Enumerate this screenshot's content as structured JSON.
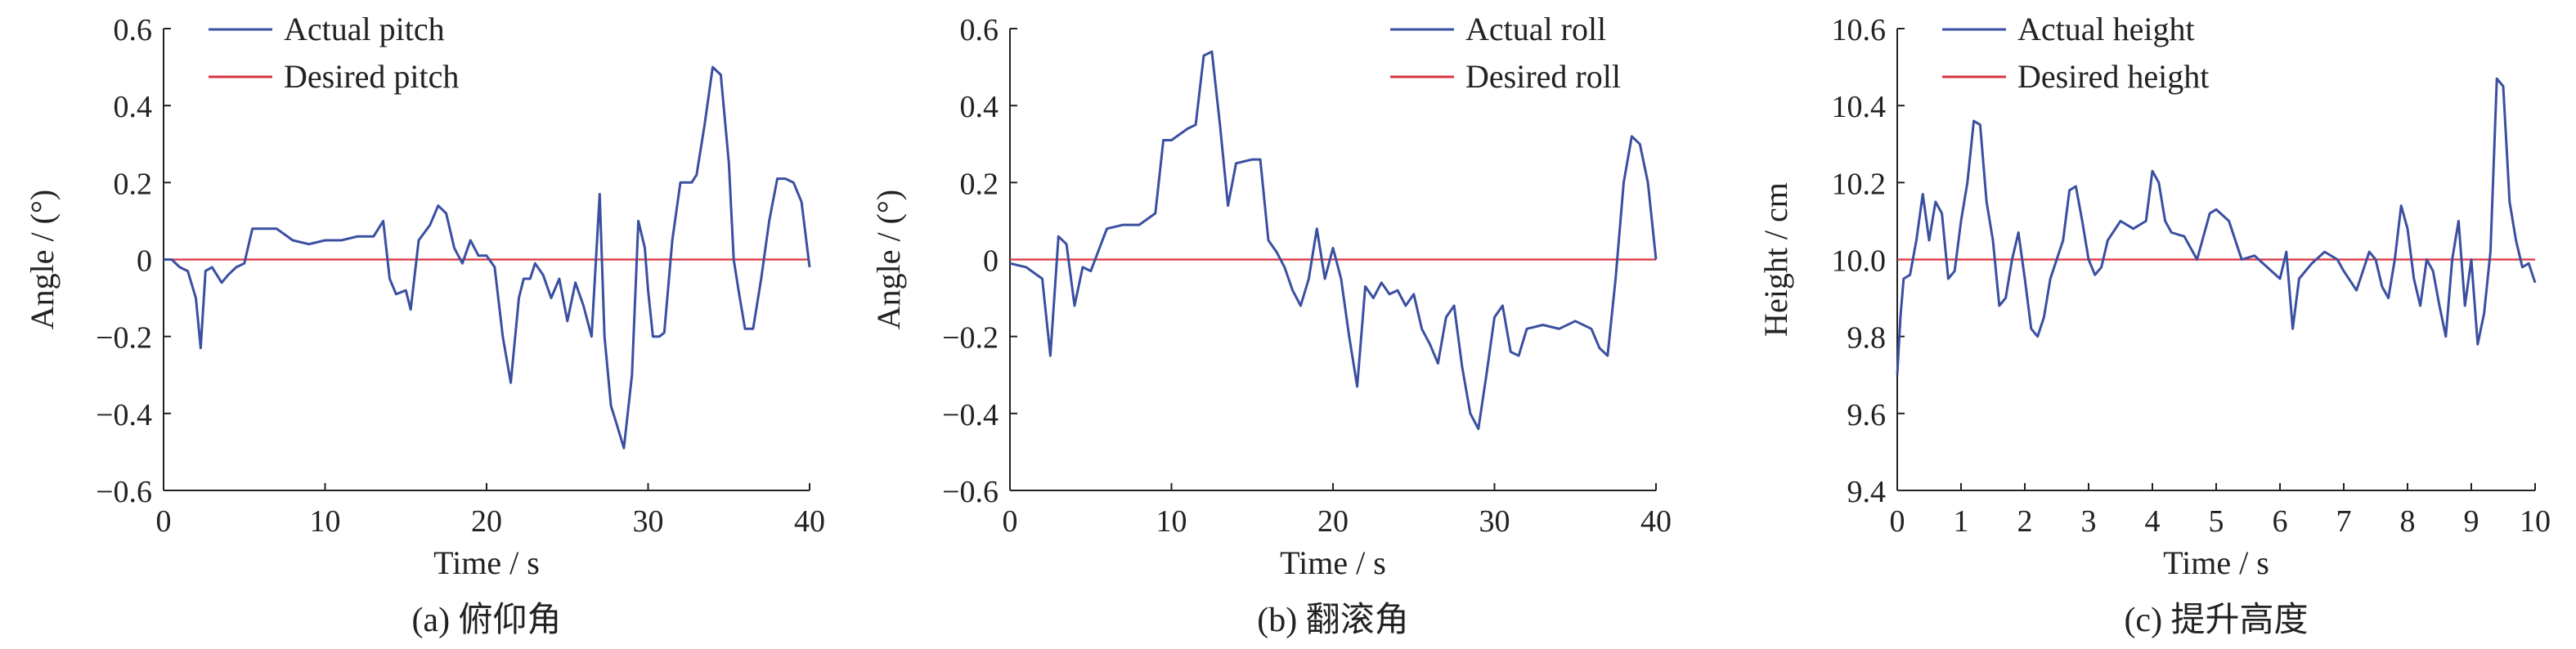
{
  "chart_data": [
    {
      "type": "line",
      "caption": "(a) 俯仰角",
      "xlabel": "Time / s",
      "ylabel": "Angle / (°)",
      "xlim": [
        0,
        40
      ],
      "ylim": [
        -0.6,
        0.6
      ],
      "xticks": [
        0,
        10,
        20,
        30,
        40
      ],
      "yticks": [
        -0.6,
        -0.4,
        -0.2,
        0,
        0.2,
        0.4,
        0.6
      ],
      "ytick_labels": [
        "−0.6",
        "−0.4",
        "−0.2",
        "0",
        "0.2",
        "0.4",
        "0.6"
      ],
      "legend_position": "top-left",
      "series": [
        {
          "name": "Actual pitch",
          "color": "#3a4fa0",
          "x": [
            0,
            0.5,
            1.0,
            1.5,
            2.0,
            2.3,
            2.6,
            3.0,
            3.6,
            4.0,
            4.5,
            5.0,
            5.5,
            6.0,
            7.0,
            8.0,
            9.0,
            10.0,
            11.0,
            12.0,
            13.0,
            13.6,
            14.0,
            14.4,
            15.0,
            15.3,
            15.8,
            16.5,
            17.0,
            17.5,
            18.0,
            18.5,
            19.0,
            19.5,
            20.0,
            20.5,
            21.0,
            21.5,
            22.0,
            22.3,
            22.7,
            23.0,
            23.5,
            24.0,
            24.5,
            25.0,
            25.5,
            26.0,
            26.5,
            27.0,
            27.3,
            27.7,
            28.0,
            28.5,
            29.0,
            29.4,
            29.8,
            30.0,
            30.3,
            30.7,
            31.0,
            31.5,
            32.0,
            32.3,
            32.7,
            33.0,
            33.5,
            34.0,
            34.5,
            35.0,
            35.3,
            35.6,
            36.0,
            36.5,
            37.0,
            37.5,
            38.0,
            38.5,
            39.0,
            39.5,
            40.0
          ],
          "y": [
            0.0,
            0.0,
            -0.02,
            -0.03,
            -0.1,
            -0.23,
            -0.03,
            -0.02,
            -0.06,
            -0.04,
            -0.02,
            -0.01,
            0.08,
            0.08,
            0.08,
            0.05,
            0.04,
            0.05,
            0.05,
            0.06,
            0.06,
            0.1,
            -0.05,
            -0.09,
            -0.08,
            -0.13,
            0.05,
            0.09,
            0.14,
            0.12,
            0.03,
            -0.01,
            0.05,
            0.01,
            0.01,
            -0.02,
            -0.2,
            -0.32,
            -0.1,
            -0.05,
            -0.05,
            -0.01,
            -0.04,
            -0.1,
            -0.05,
            -0.16,
            -0.06,
            -0.12,
            -0.2,
            0.17,
            -0.2,
            -0.38,
            -0.42,
            -0.49,
            -0.3,
            0.1,
            0.03,
            -0.08,
            -0.2,
            -0.2,
            -0.19,
            0.05,
            0.2,
            0.2,
            0.2,
            0.22,
            0.35,
            0.5,
            0.48,
            0.25,
            0.0,
            -0.08,
            -0.18,
            -0.18,
            -0.05,
            0.1,
            0.21,
            0.21,
            0.2,
            0.15,
            -0.02
          ]
        },
        {
          "name": "Desired pitch",
          "color": "#d9343f",
          "x": [
            0,
            40
          ],
          "y": [
            0,
            0
          ]
        }
      ]
    },
    {
      "type": "line",
      "caption": "(b) 翻滚角",
      "xlabel": "Time / s",
      "ylabel": "Angle / (°)",
      "xlim": [
        0,
        40
      ],
      "ylim": [
        -0.6,
        0.6
      ],
      "xticks": [
        0,
        10,
        20,
        30,
        40
      ],
      "yticks": [
        -0.6,
        -0.4,
        -0.2,
        0,
        0.2,
        0.4,
        0.6
      ],
      "ytick_labels": [
        "−0.6",
        "−0.4",
        "−0.2",
        "0",
        "0.2",
        "0.4",
        "0.6"
      ],
      "legend_position": "top-right",
      "series": [
        {
          "name": "Actual roll",
          "color": "#3a4fa0",
          "x": [
            0,
            1.0,
            2.0,
            2.5,
            3.0,
            3.5,
            4.0,
            4.5,
            5.0,
            6.0,
            7.0,
            8.0,
            9.0,
            9.5,
            10.0,
            11.0,
            11.5,
            12.0,
            12.5,
            13.0,
            13.5,
            14.0,
            15.0,
            15.5,
            16.0,
            16.5,
            17.0,
            17.5,
            18.0,
            18.5,
            19.0,
            19.5,
            20.0,
            20.5,
            21.0,
            21.5,
            22.0,
            22.5,
            23.0,
            23.5,
            24.0,
            24.5,
            25.0,
            25.5,
            26.0,
            26.5,
            27.0,
            27.5,
            28.0,
            28.5,
            29.0,
            29.5,
            30.0,
            30.5,
            31.0,
            31.5,
            32.0,
            33.0,
            34.0,
            35.0,
            36.0,
            36.5,
            37.0,
            37.5,
            38.0,
            38.5,
            39.0,
            39.5,
            40.0
          ],
          "y": [
            -0.01,
            -0.02,
            -0.05,
            -0.25,
            0.06,
            0.04,
            -0.12,
            -0.02,
            -0.03,
            0.08,
            0.09,
            0.09,
            0.12,
            0.31,
            0.31,
            0.34,
            0.35,
            0.53,
            0.54,
            0.35,
            0.14,
            0.25,
            0.26,
            0.26,
            0.05,
            0.02,
            -0.02,
            -0.08,
            -0.12,
            -0.05,
            0.08,
            -0.05,
            0.03,
            -0.05,
            -0.2,
            -0.33,
            -0.07,
            -0.1,
            -0.06,
            -0.09,
            -0.08,
            -0.12,
            -0.09,
            -0.18,
            -0.22,
            -0.27,
            -0.15,
            -0.12,
            -0.28,
            -0.4,
            -0.44,
            -0.3,
            -0.15,
            -0.12,
            -0.24,
            -0.25,
            -0.18,
            -0.17,
            -0.18,
            -0.16,
            -0.18,
            -0.23,
            -0.25,
            -0.05,
            0.2,
            0.32,
            0.3,
            0.2,
            0.0
          ]
        },
        {
          "name": "Desired roll",
          "color": "#d9343f",
          "x": [
            0,
            40
          ],
          "y": [
            0,
            0
          ]
        }
      ]
    },
    {
      "type": "line",
      "caption": "(c) 提升高度",
      "xlabel": "Time / s",
      "ylabel": "Height / cm",
      "xlim": [
        0,
        10
      ],
      "ylim": [
        9.4,
        10.6
      ],
      "xticks": [
        0,
        1,
        2,
        3,
        4,
        5,
        6,
        7,
        8,
        9,
        10
      ],
      "yticks": [
        9.4,
        9.6,
        9.8,
        10.0,
        10.2,
        10.4,
        10.6
      ],
      "ytick_labels": [
        "9.4",
        "9.6",
        "9.8",
        "10.0",
        "10.2",
        "10.4",
        "10.6"
      ],
      "legend_position": "top-left",
      "series": [
        {
          "name": "Actual height",
          "color": "#3a4fa0",
          "x": [
            0,
            0.05,
            0.1,
            0.2,
            0.3,
            0.4,
            0.5,
            0.6,
            0.7,
            0.8,
            0.9,
            1.0,
            1.1,
            1.2,
            1.3,
            1.4,
            1.5,
            1.6,
            1.7,
            1.8,
            1.9,
            2.0,
            2.1,
            2.2,
            2.3,
            2.4,
            2.5,
            2.6,
            2.7,
            2.8,
            2.9,
            3.0,
            3.1,
            3.2,
            3.3,
            3.5,
            3.7,
            3.9,
            4.0,
            4.1,
            4.2,
            4.3,
            4.5,
            4.7,
            4.9,
            5.0,
            5.2,
            5.4,
            5.6,
            5.8,
            6.0,
            6.1,
            6.2,
            6.3,
            6.5,
            6.7,
            6.9,
            7.0,
            7.2,
            7.4,
            7.5,
            7.6,
            7.7,
            7.8,
            7.9,
            8.0,
            8.1,
            8.2,
            8.3,
            8.4,
            8.5,
            8.6,
            8.7,
            8.8,
            8.9,
            9.0,
            9.1,
            9.2,
            9.3,
            9.4,
            9.5,
            9.6,
            9.7,
            9.8,
            9.9,
            10.0
          ],
          "y": [
            9.7,
            9.85,
            9.95,
            9.96,
            10.05,
            10.17,
            10.05,
            10.15,
            10.12,
            9.95,
            9.97,
            10.1,
            10.2,
            10.36,
            10.35,
            10.15,
            10.05,
            9.88,
            9.9,
            10.0,
            10.07,
            9.95,
            9.82,
            9.8,
            9.85,
            9.95,
            10.0,
            10.05,
            10.18,
            10.19,
            10.1,
            10.0,
            9.96,
            9.98,
            10.05,
            10.1,
            10.08,
            10.1,
            10.23,
            10.2,
            10.1,
            10.07,
            10.06,
            10.0,
            10.12,
            10.13,
            10.1,
            10.0,
            10.01,
            9.98,
            9.95,
            10.02,
            9.82,
            9.95,
            9.99,
            10.02,
            10.0,
            9.97,
            9.92,
            10.02,
            10.0,
            9.93,
            9.9,
            10.0,
            10.14,
            10.08,
            9.95,
            9.88,
            10.0,
            9.97,
            9.88,
            9.8,
            10.0,
            10.1,
            9.88,
            10.0,
            9.78,
            9.86,
            10.02,
            10.47,
            10.45,
            10.15,
            10.05,
            9.98,
            9.99,
            9.94
          ]
        },
        {
          "name": "Desired height",
          "color": "#d9343f",
          "x": [
            0,
            10
          ],
          "y": [
            10,
            10
          ]
        }
      ]
    }
  ]
}
